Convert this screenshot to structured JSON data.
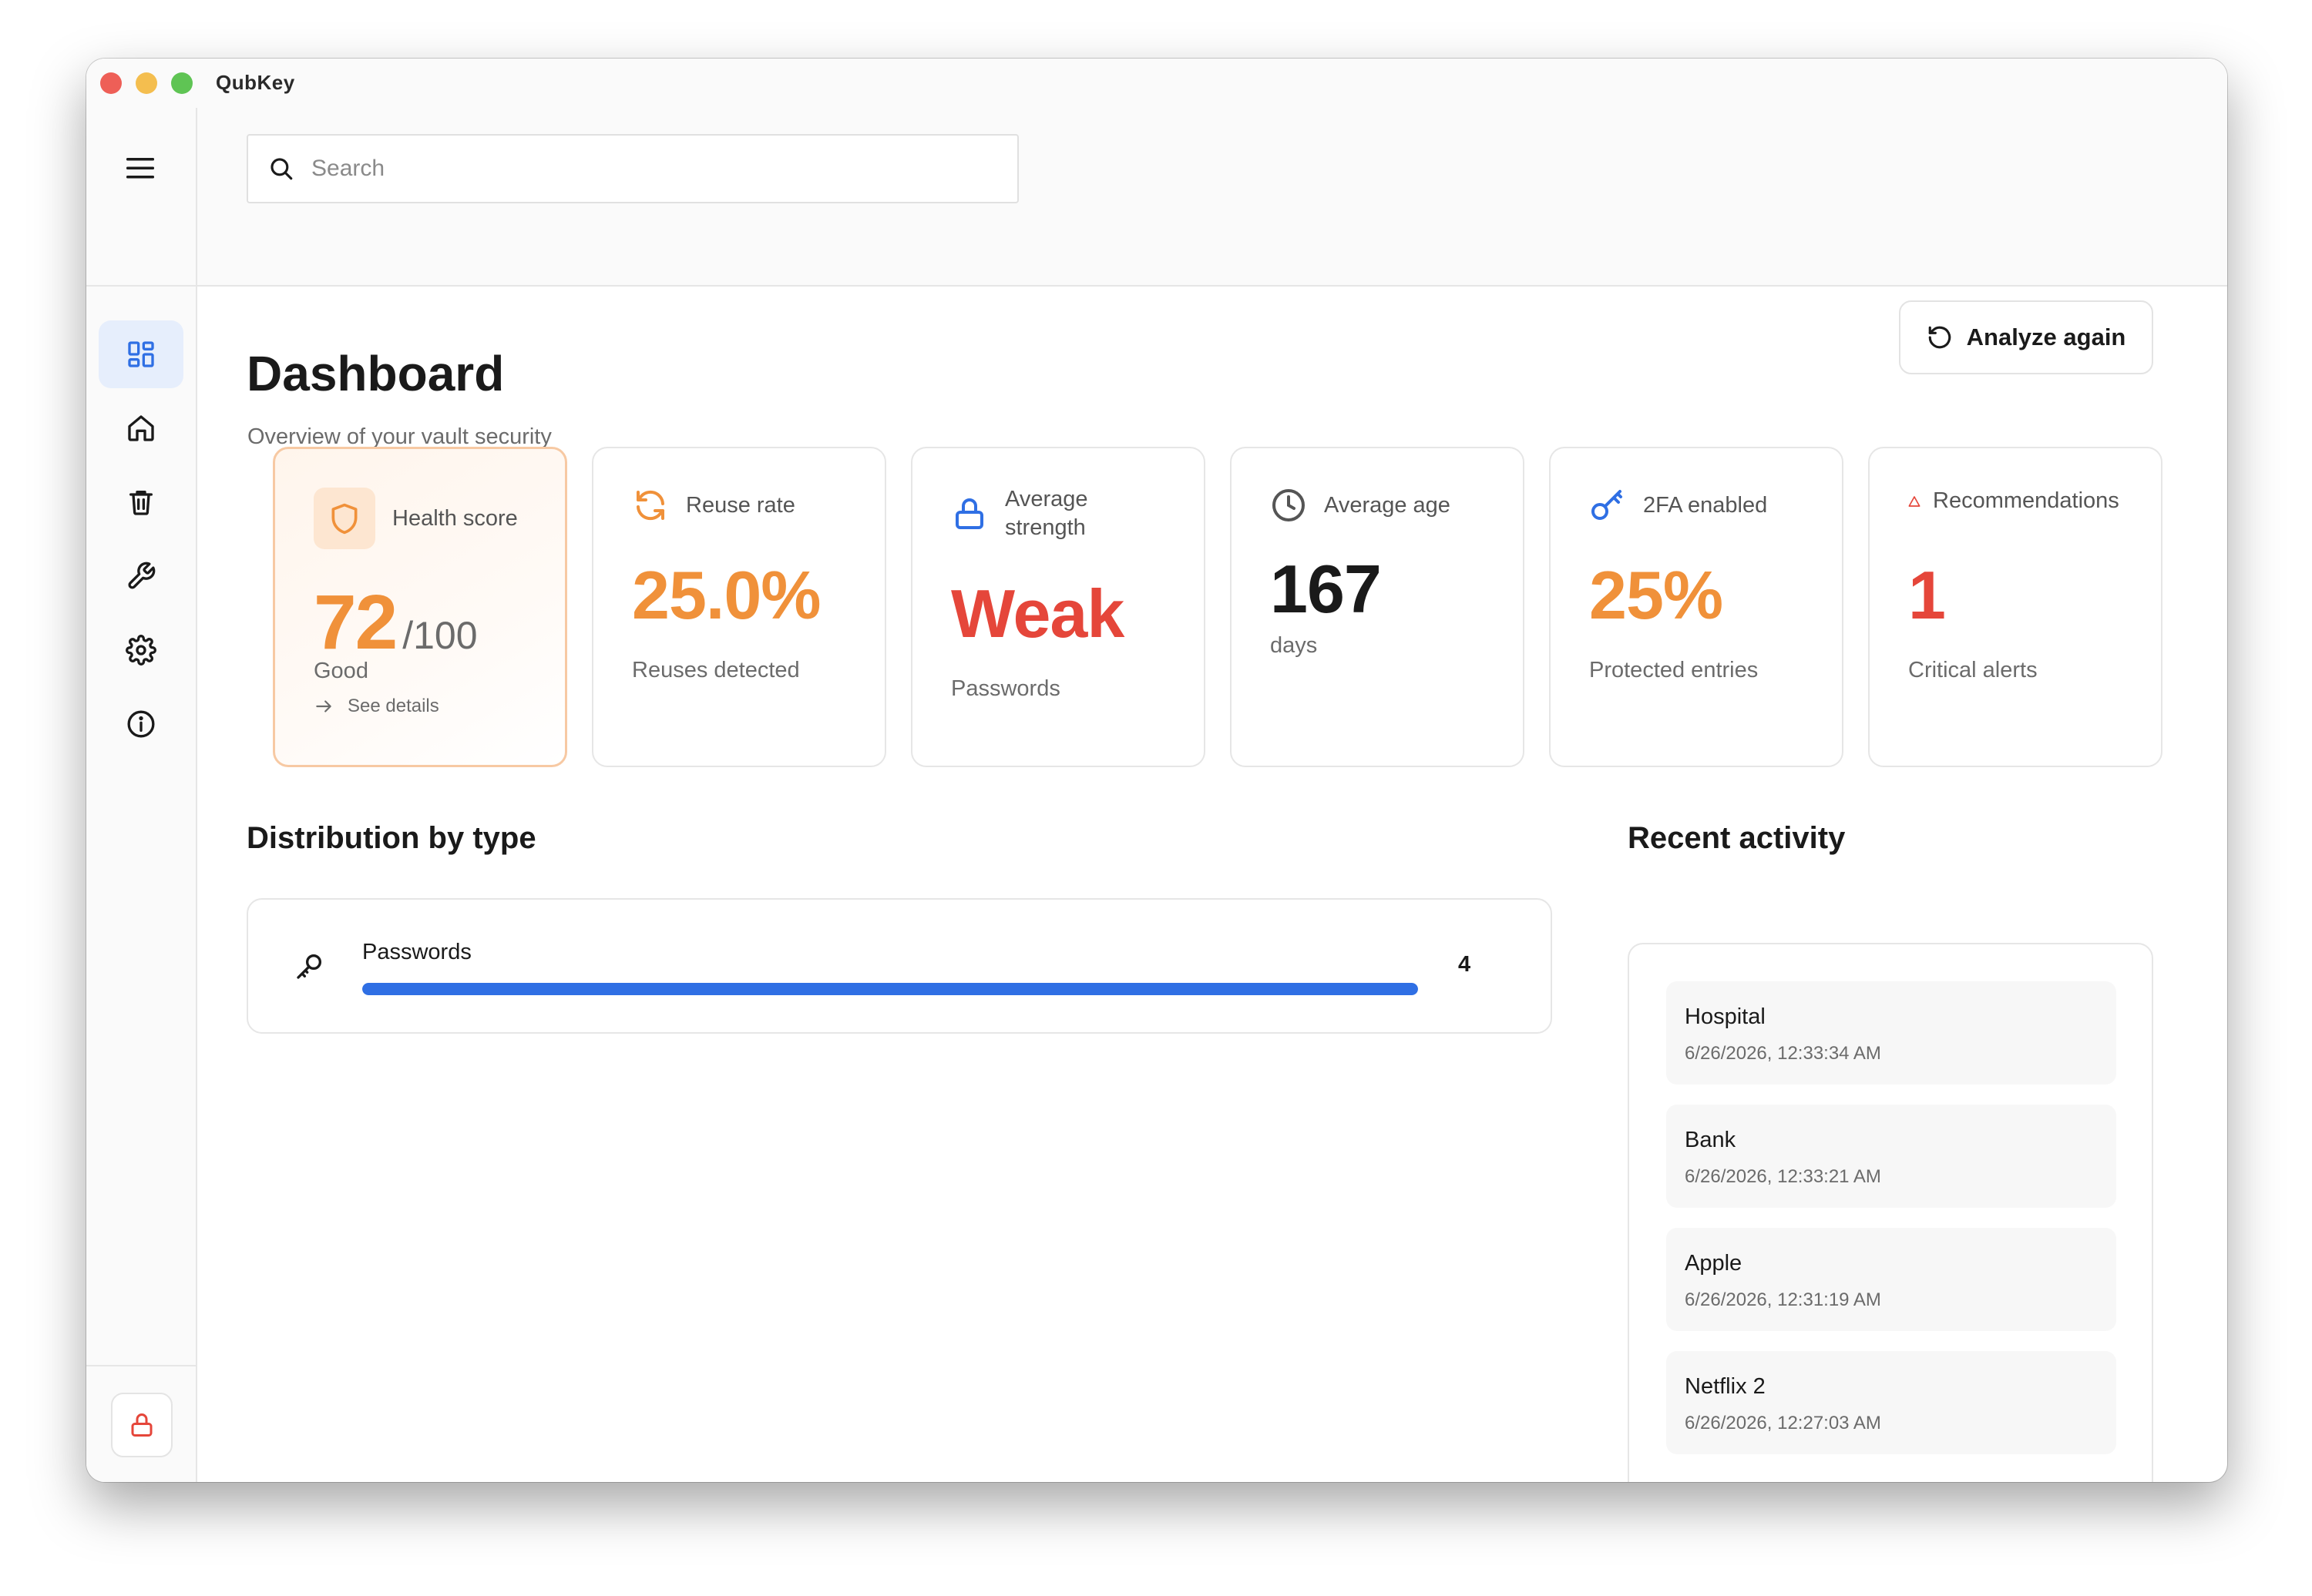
{
  "window": {
    "app_title": "QubKey"
  },
  "search": {
    "placeholder": "Search"
  },
  "sidebar": {
    "items": [
      {
        "name": "dashboard",
        "icon": "dashboard-icon",
        "active": true
      },
      {
        "name": "home",
        "icon": "home-icon",
        "active": false
      },
      {
        "name": "trash",
        "icon": "trash-icon",
        "active": false
      },
      {
        "name": "tools",
        "icon": "wrench-icon",
        "active": false
      },
      {
        "name": "settings",
        "icon": "gear-icon",
        "active": false
      },
      {
        "name": "about",
        "icon": "info-icon",
        "active": false
      }
    ],
    "lock_icon": "lock-icon"
  },
  "header": {
    "title": "Dashboard",
    "subtitle": "Overview of your vault security",
    "analyze_label": "Analyze again"
  },
  "cards": {
    "health": {
      "label": "Health score",
      "score": "72",
      "max": "/100",
      "status": "Good",
      "details_label": "See details"
    },
    "reuse": {
      "label": "Reuse rate",
      "value": "25.0%",
      "sub": "Reuses detected"
    },
    "strength": {
      "label_line1": "Average",
      "label_line2": "strength",
      "value": "Weak",
      "sub": "Passwords"
    },
    "age": {
      "label": "Average age",
      "value": "167",
      "sub": "days"
    },
    "twofa": {
      "label": "2FA enabled",
      "value": "25%",
      "sub": "Protected entries"
    },
    "recommendations": {
      "label": "Recommendations",
      "value": "1",
      "sub": "Critical alerts"
    }
  },
  "distribution": {
    "title": "Distribution by type",
    "items": [
      {
        "label": "Passwords",
        "count": "4",
        "fraction": 1.0
      }
    ]
  },
  "activity": {
    "title": "Recent activity",
    "items": [
      {
        "name": "Hospital",
        "time": "6/26/2026, 12:33:34 AM"
      },
      {
        "name": "Bank",
        "time": "6/26/2026, 12:33:21 AM"
      },
      {
        "name": "Apple",
        "time": "6/26/2026, 12:31:19 AM"
      },
      {
        "name": "Netflix 2",
        "time": "6/26/2026, 12:27:03 AM"
      }
    ]
  },
  "colors": {
    "accent_blue": "#2f6fe4",
    "warning_orange": "#f0913a",
    "danger_red": "#e5463a",
    "health_bg": "#fff5ec"
  }
}
